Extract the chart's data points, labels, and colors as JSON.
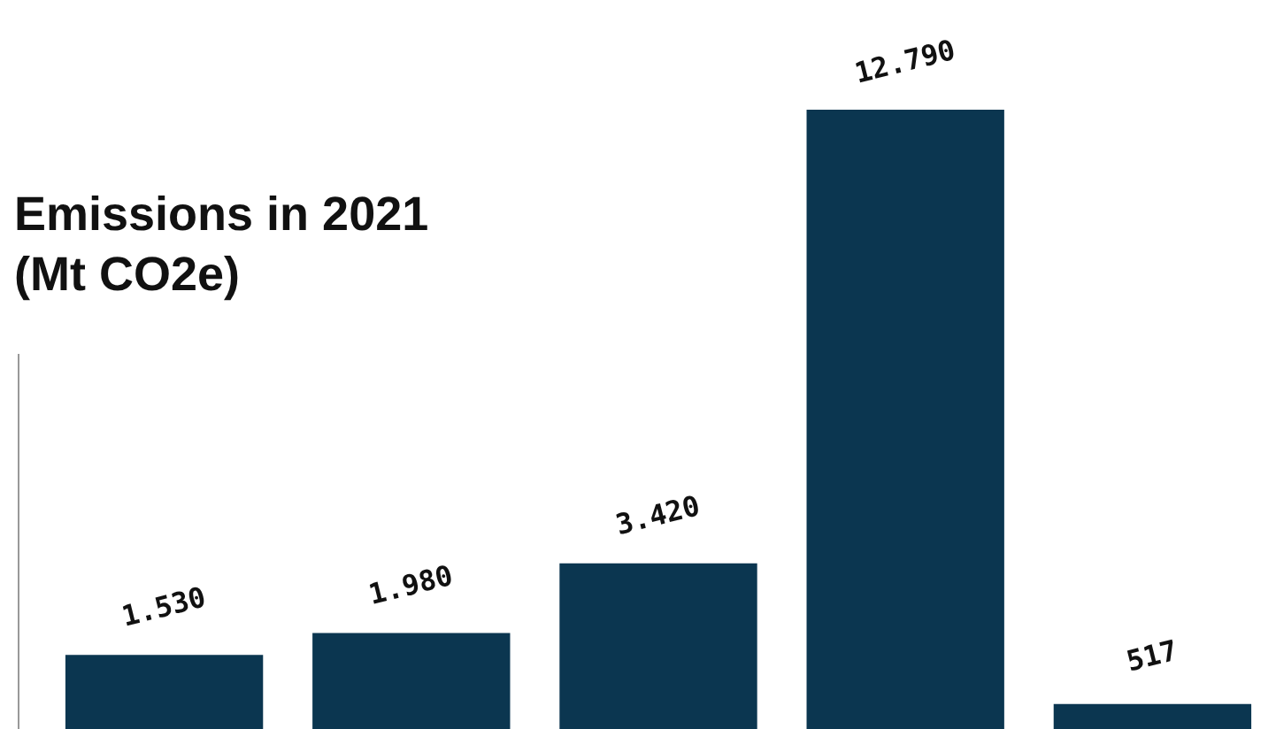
{
  "chart_data": {
    "type": "bar",
    "title": "Emissions in 2021\n(Mt CO2e)",
    "categories": [
      null,
      null,
      null,
      null,
      null
    ],
    "values": [
      1530,
      1980,
      3420,
      12790,
      517
    ],
    "value_labels": [
      "1.530",
      "1.980",
      "3.420",
      "12.790",
      "517"
    ],
    "color": "#0b3650"
  }
}
